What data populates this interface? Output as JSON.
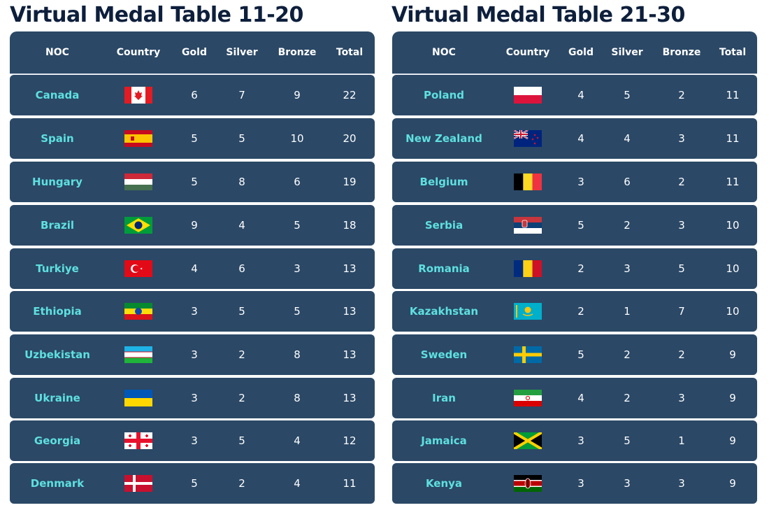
{
  "left_table": {
    "title": "Virtual Medal Table 11-20",
    "headers": {
      "noc": "NOC",
      "country": "Country",
      "gold": "Gold",
      "silver": "Silver",
      "bronze": "Bronze",
      "total": "Total"
    },
    "rows": [
      {
        "noc": "Canada",
        "flag": "canada-flag",
        "gold": "6",
        "silver": "7",
        "bronze": "9",
        "total": "22"
      },
      {
        "noc": "Spain",
        "flag": "spain-flag",
        "gold": "5",
        "silver": "5",
        "bronze": "10",
        "total": "20"
      },
      {
        "noc": "Hungary",
        "flag": "hungary-flag",
        "gold": "5",
        "silver": "8",
        "bronze": "6",
        "total": "19"
      },
      {
        "noc": "Brazil",
        "flag": "brazil-flag",
        "gold": "9",
        "silver": "4",
        "bronze": "5",
        "total": "18"
      },
      {
        "noc": "Turkiye",
        "flag": "turkiye-flag",
        "gold": "4",
        "silver": "6",
        "bronze": "3",
        "total": "13"
      },
      {
        "noc": "Ethiopia",
        "flag": "ethiopia-flag",
        "gold": "3",
        "silver": "5",
        "bronze": "5",
        "total": "13"
      },
      {
        "noc": "Uzbekistan",
        "flag": "uzbekistan-flag",
        "gold": "3",
        "silver": "2",
        "bronze": "8",
        "total": "13"
      },
      {
        "noc": "Ukraine",
        "flag": "ukraine-flag",
        "gold": "3",
        "silver": "2",
        "bronze": "8",
        "total": "13"
      },
      {
        "noc": "Georgia",
        "flag": "georgia-flag",
        "gold": "3",
        "silver": "5",
        "bronze": "4",
        "total": "12"
      },
      {
        "noc": "Denmark",
        "flag": "denmark-flag",
        "gold": "5",
        "silver": "2",
        "bronze": "4",
        "total": "11"
      }
    ]
  },
  "right_table": {
    "title": "Virtual Medal Table 21-30",
    "headers": {
      "noc": "NOC",
      "country": "Country",
      "gold": "Gold",
      "silver": "Silver",
      "bronze": "Bronze",
      "total": "Total"
    },
    "rows": [
      {
        "noc": "Poland",
        "flag": "poland-flag",
        "gold": "4",
        "silver": "5",
        "bronze": "2",
        "total": "11"
      },
      {
        "noc": "New Zealand",
        "flag": "new-zealand-flag",
        "gold": "4",
        "silver": "4",
        "bronze": "3",
        "total": "11"
      },
      {
        "noc": "Belgium",
        "flag": "belgium-flag",
        "gold": "3",
        "silver": "6",
        "bronze": "2",
        "total": "11"
      },
      {
        "noc": "Serbia",
        "flag": "serbia-flag",
        "gold": "5",
        "silver": "2",
        "bronze": "3",
        "total": "10"
      },
      {
        "noc": "Romania",
        "flag": "romania-flag",
        "gold": "2",
        "silver": "3",
        "bronze": "5",
        "total": "10"
      },
      {
        "noc": "Kazakhstan",
        "flag": "kazakhstan-flag",
        "gold": "2",
        "silver": "1",
        "bronze": "7",
        "total": "10"
      },
      {
        "noc": "Sweden",
        "flag": "sweden-flag",
        "gold": "5",
        "silver": "2",
        "bronze": "2",
        "total": "9"
      },
      {
        "noc": "Iran",
        "flag": "iran-flag",
        "gold": "4",
        "silver": "2",
        "bronze": "3",
        "total": "9"
      },
      {
        "noc": "Jamaica",
        "flag": "jamaica-flag",
        "gold": "3",
        "silver": "5",
        "bronze": "1",
        "total": "9"
      },
      {
        "noc": "Kenya",
        "flag": "kenya-flag",
        "gold": "3",
        "silver": "3",
        "bronze": "3",
        "total": "9"
      }
    ]
  },
  "colors": {
    "title": "#0d1f3c",
    "row_bg": "#2b4866",
    "noc_text": "#5ee0e0",
    "cell_text": "#ffffff",
    "page_bg": "#ffffff"
  }
}
